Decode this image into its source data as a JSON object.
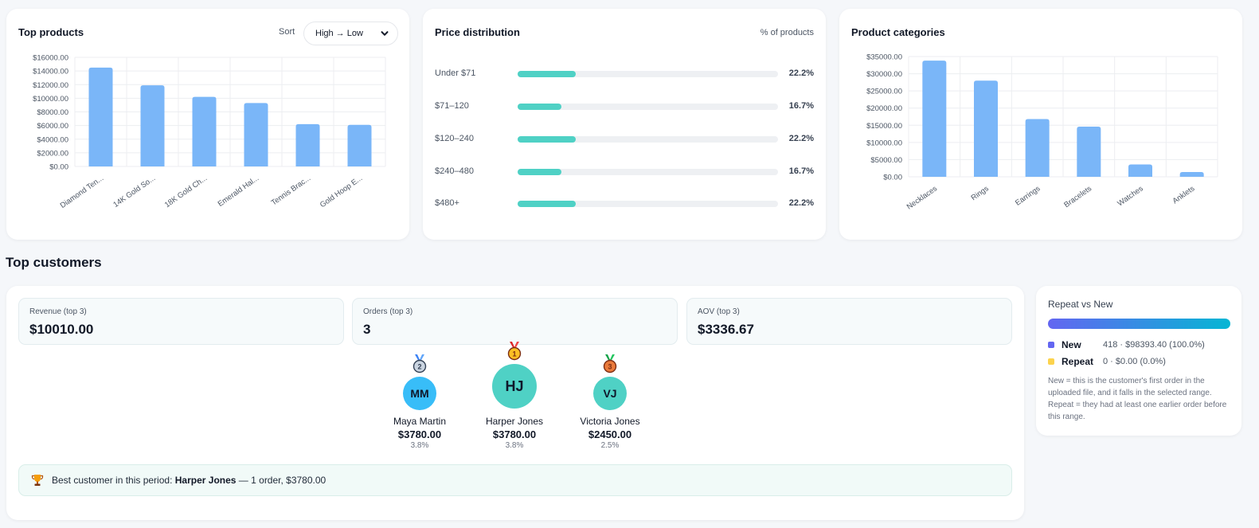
{
  "top_products": {
    "title": "Top products",
    "sort_label": "Sort",
    "sort_value": "High → Low",
    "chart_data": {
      "type": "bar",
      "categories": [
        "Diamond Ten...",
        "14K Gold So...",
        "18K Gold Ch...",
        "Emerald Hal...",
        "Tennis Brac...",
        "Gold Hoop E..."
      ],
      "values": [
        14500,
        11900,
        10200,
        9300,
        6200,
        6100
      ],
      "ylim": [
        0,
        16000
      ],
      "ticks": [
        "$0.00",
        "$2000.00",
        "$4000.00",
        "$6000.00",
        "$8000.00",
        "$10000.00",
        "$12000.00",
        "$14000.00",
        "$16000.00"
      ],
      "color": "#7ab6f8",
      "grid": true
    }
  },
  "price_distribution": {
    "title": "Price distribution",
    "header_right": "% of products",
    "rows": [
      {
        "label": "Under $71",
        "percent": 22.2,
        "pct_text": "22.2%"
      },
      {
        "label": "$71–120",
        "percent": 16.7,
        "pct_text": "16.7%"
      },
      {
        "label": "$120–240",
        "percent": 22.2,
        "pct_text": "22.2%"
      },
      {
        "label": "$240–480",
        "percent": 16.7,
        "pct_text": "16.7%"
      },
      {
        "label": "$480+",
        "percent": 22.2,
        "pct_text": "22.2%"
      }
    ],
    "bar_color": "#4fd1c5",
    "track_color": "#eef0f3"
  },
  "product_categories": {
    "title": "Product categories",
    "chart_data": {
      "type": "bar",
      "categories": [
        "Necklaces",
        "Rings",
        "Earrings",
        "Bracelets",
        "Watches",
        "Anklets"
      ],
      "values": [
        33800,
        28000,
        16800,
        14600,
        3600,
        1400
      ],
      "ylim": [
        0,
        35000
      ],
      "ticks": [
        "$0.00",
        "$5000.00",
        "$10000.00",
        "$15000.00",
        "$20000.00",
        "$25000.00",
        "$30000.00",
        "$35000.00"
      ],
      "color": "#7ab6f8",
      "grid": true
    }
  },
  "top_customers": {
    "section_title": "Top customers",
    "kpis": [
      {
        "label": "Revenue (top 3)",
        "value": "$10010.00"
      },
      {
        "label": "Orders (top 3)",
        "value": "3"
      },
      {
        "label": "AOV (top 3)",
        "value": "$3336.67"
      }
    ],
    "podium": [
      {
        "initials": "MM",
        "name": "Maya Martin",
        "amount": "$3780.00",
        "share": "3.8%",
        "avatar_color": "#38bdf8",
        "medal": "silver"
      },
      {
        "initials": "HJ",
        "name": "Harper Jones",
        "amount": "$3780.00",
        "share": "3.8%",
        "avatar_color": "#4fd1c5",
        "medal": "gold"
      },
      {
        "initials": "VJ",
        "name": "Victoria Jones",
        "amount": "$2450.00",
        "share": "2.5%",
        "avatar_color": "#4fd1c5",
        "medal": "bronze"
      }
    ],
    "best": {
      "prefix": "Best customer in this period:",
      "name": "Harper Jones",
      "suffix": "— 1 order, $3780.00"
    }
  },
  "repeat_vs_new": {
    "title": "Repeat vs New",
    "rows": [
      {
        "name": "New",
        "stat": "418 · $98393.40 (100.0%)",
        "color": "#6366f1"
      },
      {
        "name": "Repeat",
        "stat": "0 · $0.00 (0.0%)",
        "color": "#fcd34d"
      }
    ],
    "note": "New = this is the customer's first order in the uploaded file, and it falls in the selected range. Repeat = they had at least one earlier order before this range."
  }
}
